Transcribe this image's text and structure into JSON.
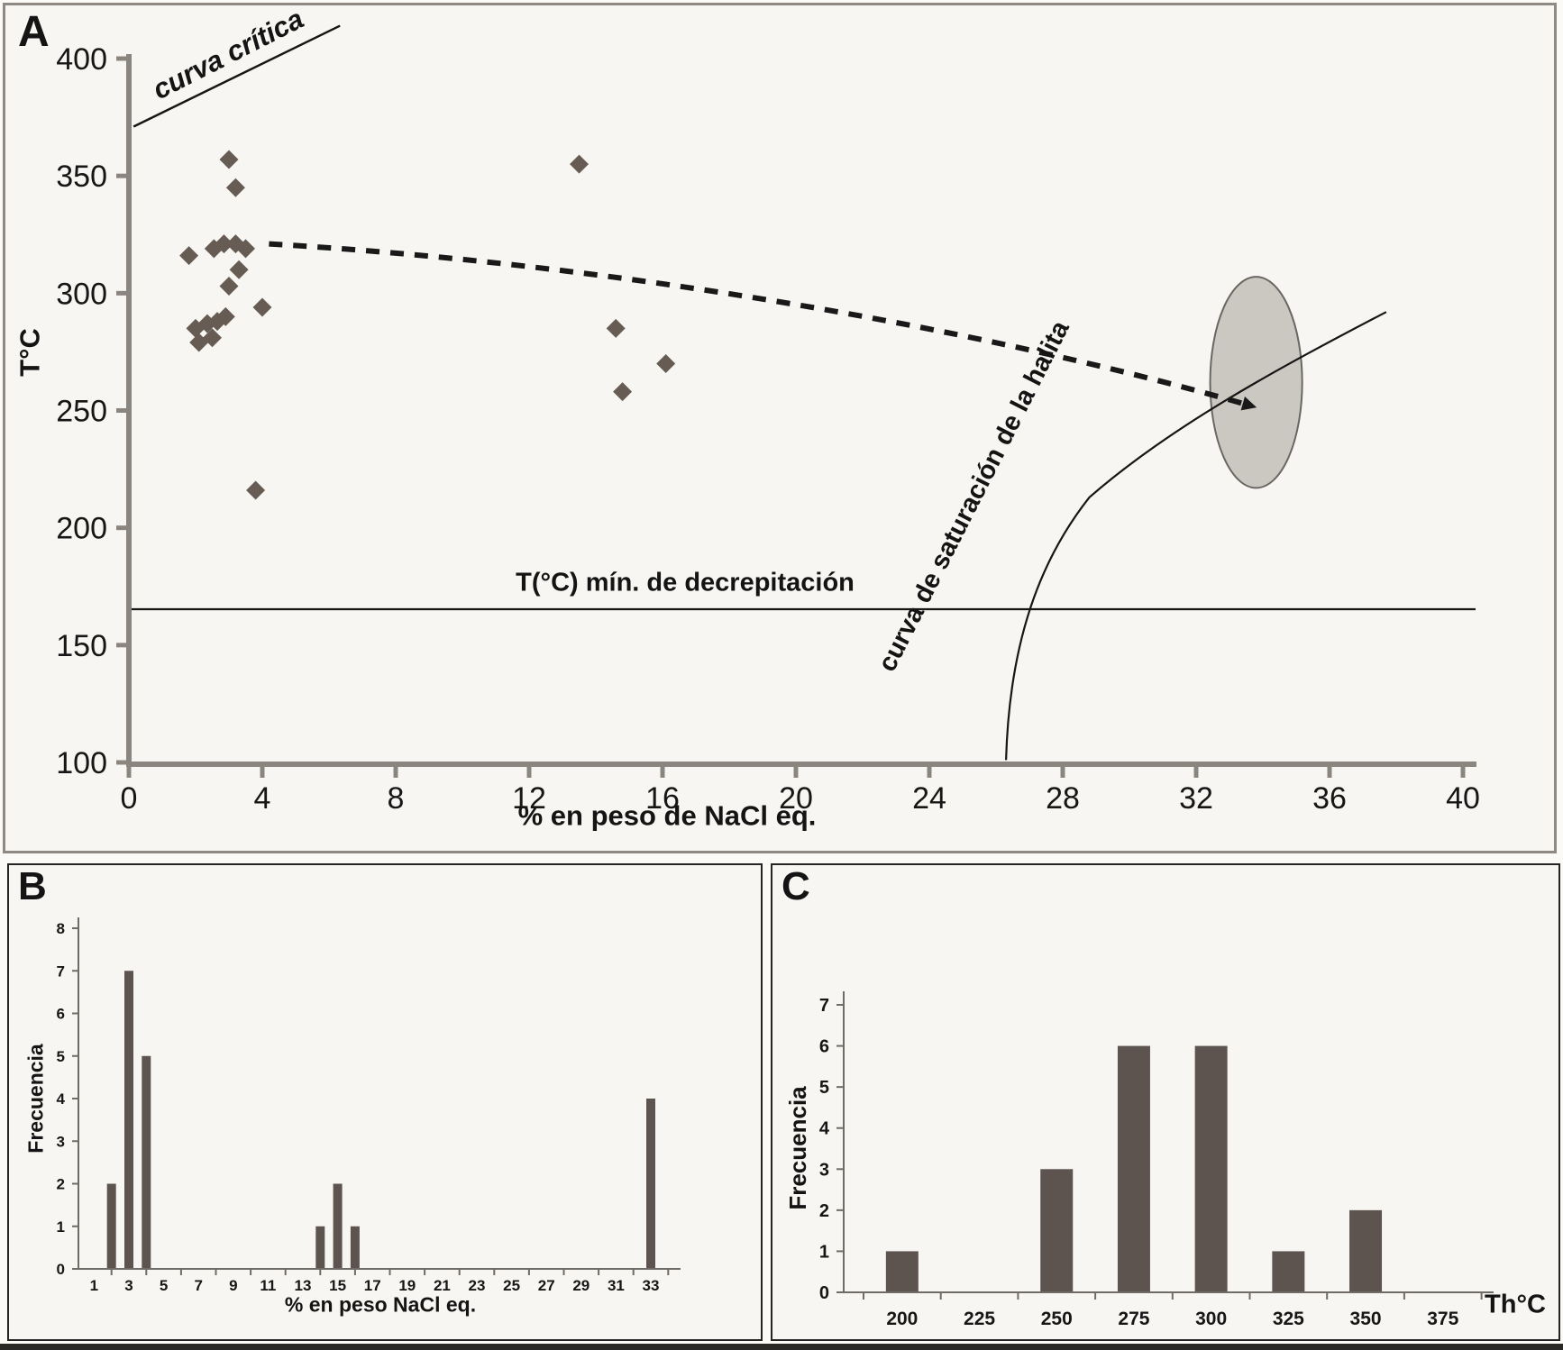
{
  "panels": {
    "a_letter": "A",
    "b_letter": "B",
    "c_letter": "C"
  },
  "colors": {
    "marker": "#665c54",
    "bar": "#5d5450",
    "axis_gray": "#8b8580",
    "axis_dark": "#6f6b67",
    "ink": "#161616",
    "ellipse_fill": "#cbc7c1",
    "ellipse_stroke": "#6a6763",
    "panel_bg": "#f8f6f2"
  },
  "chart_data": [
    {
      "id": "A",
      "type": "scatter",
      "xlabel": "% en peso de NaCl eq.",
      "ylabel": "T°C",
      "xlim": [
        0,
        40
      ],
      "ylim": [
        100,
        400
      ],
      "x_ticks": [
        0,
        4,
        8,
        12,
        16,
        20,
        24,
        28,
        32,
        36,
        40
      ],
      "y_ticks": [
        100,
        150,
        200,
        250,
        300,
        350,
        400
      ],
      "marker": "diamond",
      "points": [
        [
          3.0,
          357
        ],
        [
          3.2,
          345
        ],
        [
          1.8,
          316
        ],
        [
          2.55,
          319
        ],
        [
          2.85,
          321
        ],
        [
          3.2,
          321
        ],
        [
          3.5,
          319
        ],
        [
          3.3,
          310
        ],
        [
          3.0,
          303
        ],
        [
          4.0,
          294
        ],
        [
          2.0,
          285
        ],
        [
          2.35,
          287
        ],
        [
          2.65,
          288
        ],
        [
          2.9,
          290
        ],
        [
          2.1,
          279
        ],
        [
          2.5,
          281
        ],
        [
          3.8,
          216
        ],
        [
          13.5,
          355
        ],
        [
          14.6,
          285
        ],
        [
          16.1,
          270
        ],
        [
          14.8,
          258
        ]
      ],
      "annotations": {
        "critical_curve_label": "curva crítica",
        "critical_line": {
          "from": [
            0.14,
            371
          ],
          "to": [
            6.33,
            414
          ]
        },
        "decrepitation_label": "T(°C) mín. de decrepitación",
        "decrepitation_T": 165.3,
        "trend_arrow": {
          "start": [
            4.2,
            321
          ],
          "c1": [
            14,
            313
          ],
          "c2": [
            25,
            287
          ],
          "end": [
            33.4,
            253
          ]
        },
        "ellipse": {
          "cx": 33.8,
          "cy": 262,
          "rx": 1.38,
          "ry": 45
        },
        "halite_curve_label": "curva de saturación de la halita",
        "halite_curve": {
          "start": [
            26.3,
            101
          ],
          "c1": [
            26.4,
            151
          ],
          "c2": [
            27.3,
            186
          ],
          "mid": [
            28.8,
            213
          ],
          "c3": [
            31.3,
            244
          ],
          "c4": [
            34.6,
            269
          ],
          "end": [
            37.7,
            292
          ]
        }
      }
    },
    {
      "id": "B",
      "type": "bar",
      "xlabel": "% en peso NaCl eq.",
      "ylabel": "Frecuencia",
      "ylim": [
        0,
        8
      ],
      "y_ticks": [
        0,
        1,
        2,
        3,
        4,
        5,
        6,
        7,
        8
      ],
      "x_tick_labels": [
        1,
        3,
        5,
        7,
        9,
        11,
        13,
        15,
        17,
        19,
        21,
        23,
        25,
        27,
        29,
        31,
        33
      ],
      "bars": [
        {
          "x": 2,
          "freq": 2
        },
        {
          "x": 3,
          "freq": 7
        },
        {
          "x": 4,
          "freq": 5
        },
        {
          "x": 14,
          "freq": 1
        },
        {
          "x": 15,
          "freq": 2
        },
        {
          "x": 16,
          "freq": 1
        },
        {
          "x": 33,
          "freq": 4
        }
      ]
    },
    {
      "id": "C",
      "type": "bar",
      "xlabel": "Th°C",
      "ylabel": "Frecuencia",
      "ylim": [
        0,
        7
      ],
      "y_ticks": [
        0,
        1,
        2,
        3,
        4,
        5,
        6,
        7
      ],
      "categories": [
        "200",
        "225",
        "250",
        "275",
        "300",
        "325",
        "350",
        "375"
      ],
      "values": [
        1,
        0,
        3,
        6,
        6,
        1,
        2,
        0
      ]
    }
  ]
}
